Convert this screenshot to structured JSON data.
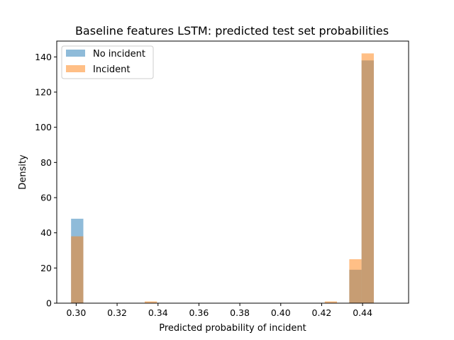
{
  "chart_data": {
    "type": "bar",
    "title": "Baseline features LSTM: predicted test set probabilities",
    "xlabel": "Predicted probability of incident",
    "ylabel": "Density",
    "xlim": [
      0.2905,
      0.4625
    ],
    "ylim": [
      0,
      149
    ],
    "xticks": [
      0.3,
      0.32,
      0.34,
      0.36,
      0.38,
      0.4,
      0.42,
      0.44
    ],
    "xtick_labels": [
      "0.30",
      "0.32",
      "0.34",
      "0.36",
      "0.38",
      "0.40",
      "0.42",
      "0.44"
    ],
    "yticks": [
      0,
      20,
      40,
      60,
      80,
      100,
      120,
      140
    ],
    "ytick_labels": [
      "0",
      "20",
      "40",
      "60",
      "80",
      "100",
      "120",
      "140"
    ],
    "grid": false,
    "legend_position": "top-left",
    "bar_alpha": 0.5,
    "series": [
      {
        "name": "No incident",
        "color": "#1f77b4",
        "bins": [
          {
            "x0": 0.2975,
            "x1": 0.3035,
            "value": 48
          },
          {
            "x0": 0.4335,
            "x1": 0.4395,
            "value": 19
          },
          {
            "x0": 0.4395,
            "x1": 0.4455,
            "value": 138
          }
        ]
      },
      {
        "name": "Incident",
        "color": "#ff7f0e",
        "bins": [
          {
            "x0": 0.2975,
            "x1": 0.3035,
            "value": 38
          },
          {
            "x0": 0.3335,
            "x1": 0.3395,
            "value": 1
          },
          {
            "x0": 0.4215,
            "x1": 0.4275,
            "value": 1
          },
          {
            "x0": 0.4335,
            "x1": 0.4395,
            "value": 25
          },
          {
            "x0": 0.4395,
            "x1": 0.4455,
            "value": 142
          }
        ]
      }
    ]
  }
}
